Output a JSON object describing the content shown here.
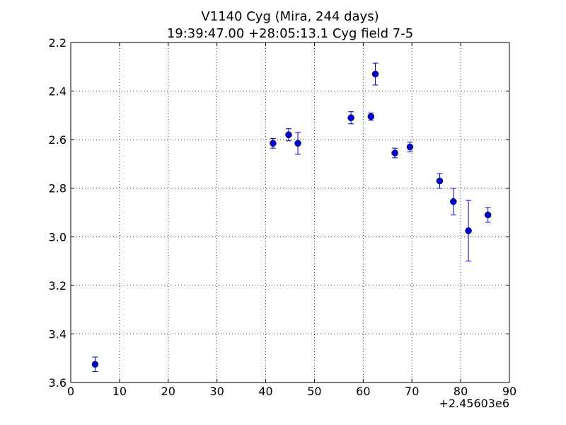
{
  "chart_data": {
    "type": "scatter",
    "title": "V1140 Cyg (Mira, 244 days)",
    "subtitle": "19:39:47.00 +28:05:13.1 Cyg field 7-5",
    "xlabel": "",
    "ylabel": "",
    "x_offset_label": "+2.45603e6",
    "xlim": [
      0,
      90
    ],
    "ylim": [
      2.2,
      3.6
    ],
    "y_inverted": true,
    "grid": true,
    "grid_style": "dotted",
    "marker_color": "#0000cc",
    "x_ticks": [
      0,
      10,
      20,
      30,
      40,
      50,
      60,
      70,
      80,
      90
    ],
    "x_tick_labels": [
      "0",
      "10",
      "20",
      "30",
      "40",
      "50",
      "60",
      "70",
      "80",
      "90"
    ],
    "y_ticks": [
      2.2,
      2.4,
      2.6,
      2.8,
      3.0,
      3.2,
      3.4,
      3.6
    ],
    "y_tick_labels": [
      "2.2",
      "2.4",
      "2.6",
      "2.8",
      "3.0",
      "3.2",
      "3.4",
      "3.6"
    ],
    "points": [
      {
        "x": 5.0,
        "y": 3.525,
        "err": 0.03
      },
      {
        "x": 41.5,
        "y": 2.615,
        "err": 0.02
      },
      {
        "x": 44.7,
        "y": 2.58,
        "err": 0.025
      },
      {
        "x": 46.6,
        "y": 2.615,
        "err": 0.045
      },
      {
        "x": 57.5,
        "y": 2.51,
        "err": 0.025
      },
      {
        "x": 61.6,
        "y": 2.505,
        "err": 0.015
      },
      {
        "x": 62.5,
        "y": 2.33,
        "err": 0.045
      },
      {
        "x": 66.5,
        "y": 2.655,
        "err": 0.02
      },
      {
        "x": 69.6,
        "y": 2.63,
        "err": 0.02
      },
      {
        "x": 75.7,
        "y": 2.77,
        "err": 0.03
      },
      {
        "x": 78.5,
        "y": 2.855,
        "err": 0.055
      },
      {
        "x": 81.6,
        "y": 2.975,
        "err": 0.125
      },
      {
        "x": 85.6,
        "y": 2.91,
        "err": 0.03
      }
    ]
  }
}
